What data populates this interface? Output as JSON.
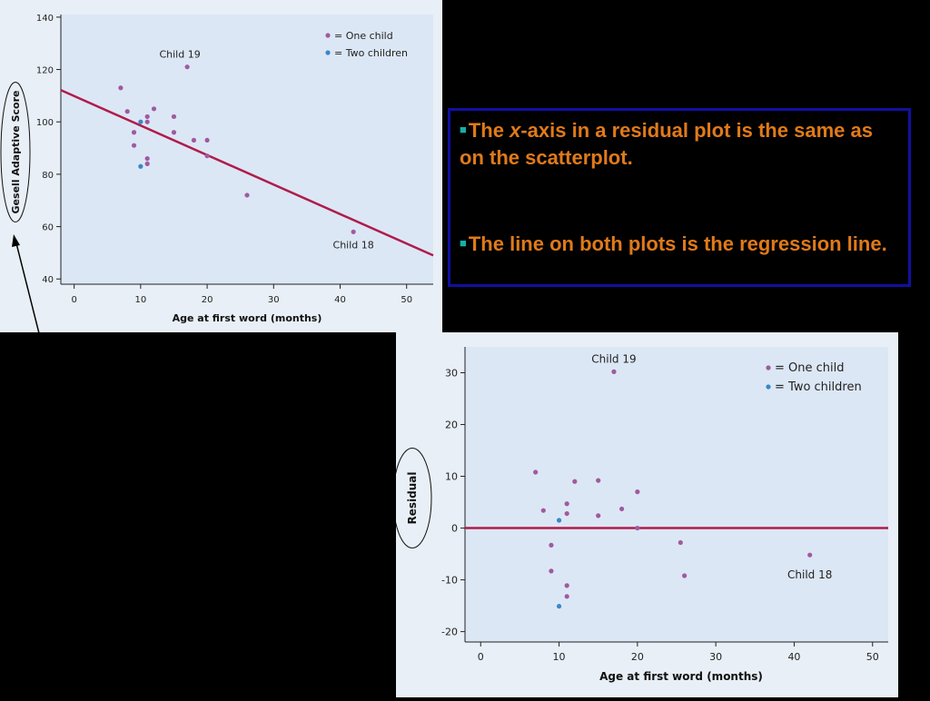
{
  "chart_data": [
    {
      "type": "scatter",
      "title": "",
      "xlabel": "Age at first word (months)",
      "ylabel": "Gesell Adaptive Score",
      "xlim": [
        -2,
        54
      ],
      "ylim": [
        38,
        141
      ],
      "xticks": [
        0,
        10,
        20,
        30,
        40,
        50
      ],
      "yticks": [
        40,
        60,
        80,
        100,
        120,
        140
      ],
      "grid": false,
      "legend_position": "top-right",
      "series": [
        {
          "name": "= One child",
          "color": "#a05a9e",
          "x": [
            7,
            8,
            9,
            9,
            11,
            11,
            12,
            15,
            15,
            17,
            18,
            20,
            20,
            26,
            42,
            11
          ],
          "y": [
            113,
            104,
            96,
            91,
            100,
            102,
            105,
            102,
            96,
            121,
            93,
            93,
            87,
            72,
            58,
            84
          ]
        },
        {
          "name": "= Two children",
          "color": "#3a87c8",
          "x": [
            10,
            10
          ],
          "y": [
            100,
            83
          ]
        }
      ],
      "regression_line": {
        "color": "#b01c4a",
        "intercept": 109.87,
        "slope": -1.127
      },
      "annotations": [
        {
          "text": "Child 19",
          "x": 17,
          "y": 121
        },
        {
          "text": "Child 18",
          "x": 42,
          "y": 58
        }
      ],
      "extra_points": [
        {
          "x": 11,
          "y": 86,
          "color": "#a05a9e"
        }
      ],
      "ylabel_circled": true
    },
    {
      "type": "scatter",
      "title": "",
      "xlabel": "Age at first word (months)",
      "ylabel": "Residual",
      "xlim": [
        -2,
        52
      ],
      "ylim": [
        -22,
        35
      ],
      "xticks": [
        0,
        10,
        20,
        30,
        40,
        50
      ],
      "yticks": [
        -20,
        -10,
        0,
        10,
        20,
        30
      ],
      "grid": false,
      "legend_position": "top-right",
      "series": [
        {
          "name": "= One child",
          "color": "#a05a9e",
          "x": [
            7,
            8,
            9,
            9,
            11,
            11,
            11,
            11,
            12,
            15,
            15,
            17,
            18,
            20,
            20,
            25.5,
            26,
            42
          ],
          "y": [
            10.8,
            3.4,
            -3.3,
            -8.3,
            4.7,
            2.8,
            -11.1,
            -13.2,
            9,
            9.2,
            2.4,
            30.2,
            3.7,
            7,
            0,
            -2.8,
            -9.2,
            -5.2
          ]
        },
        {
          "name": "= Two children",
          "color": "#3a87c8",
          "x": [
            10,
            10
          ],
          "y": [
            1.5,
            -15.1
          ]
        }
      ],
      "zero_line": {
        "color": "#b01c4a",
        "y": 0
      },
      "annotations": [
        {
          "text": "Child 19",
          "x": 17,
          "y": 30.2
        },
        {
          "text": "Child 18",
          "x": 42,
          "y": -5.2
        }
      ],
      "ylabel_circled": true
    }
  ],
  "text_box": {
    "bullet1_pre": "The ",
    "bullet1_x": "x",
    "bullet1_post": "-axis in a residual plot is the same as on the scatterplot.",
    "bullet2": "The line on both plots is the regression line.",
    "bullet_char": "■"
  }
}
